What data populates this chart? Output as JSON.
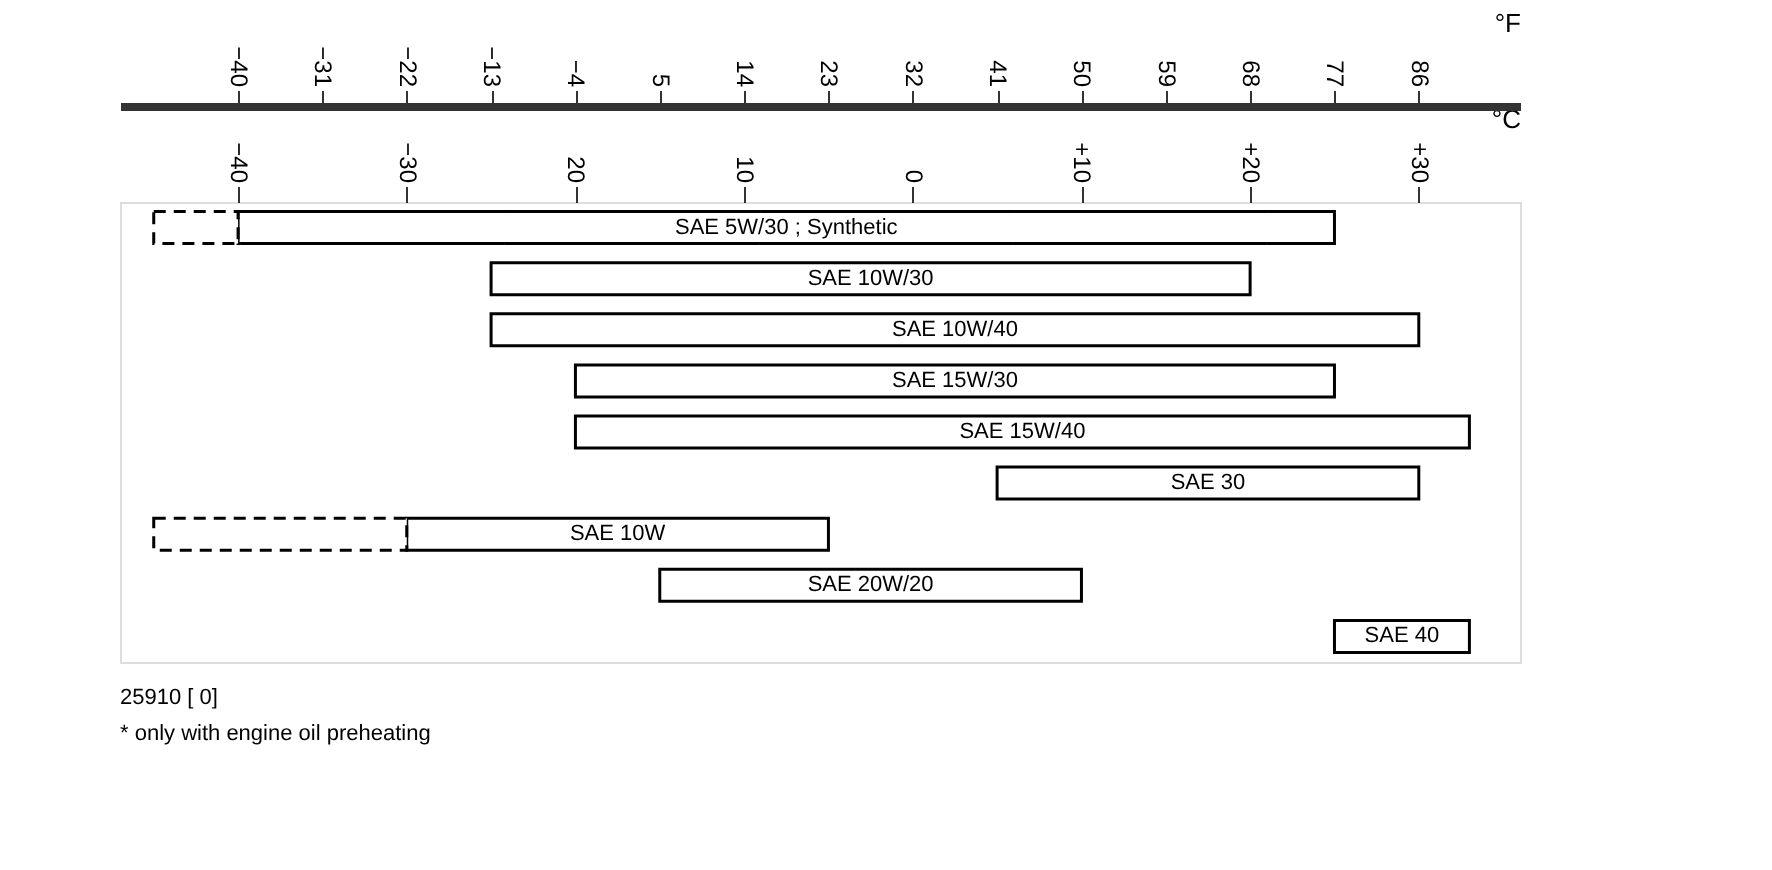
{
  "chart_data": {
    "type": "bar",
    "orientation": "horizontal",
    "categories": [
      "SAE 5W/30 ; Synthetic",
      "SAE 10W/30",
      "SAE 10W/40",
      "SAE 15W/30",
      "SAE 15W/40",
      "SAE 30",
      "SAE 10W",
      "SAE 20W/20",
      "SAE 40"
    ],
    "series": [
      {
        "color": "#000000",
        "line_style": "solid",
        "base": [
          -40,
          -25,
          -25,
          -20,
          -20,
          5,
          -30,
          -15,
          25
        ],
        "values": [
          65,
          45,
          55,
          45,
          53,
          25,
          25,
          25,
          8
        ]
      },
      {
        "color": "#000000",
        "line_style": "dashed",
        "base": [
          -45,
          null,
          null,
          null,
          null,
          null,
          -45,
          null,
          null
        ],
        "values": [
          5,
          null,
          null,
          null,
          null,
          null,
          15,
          null,
          null
        ]
      }
    ],
    "xlabel": "°C",
    "x2label": "°F",
    "xlim": [
      -47,
      36
    ],
    "xticks": [
      -40,
      -30,
      {
        "value": -20,
        "label": "20"
      },
      {
        "value": -10,
        "label": "10"
      },
      0,
      {
        "value": 10,
        "label": "+10"
      },
      {
        "value": 20,
        "label": "+20"
      },
      {
        "value": 30,
        "label": "+30"
      }
    ],
    "x2lim": [
      -52.6,
      96.8
    ],
    "x2ticks": [
      -40,
      -31,
      -22,
      -13,
      -4,
      5,
      14,
      23,
      32,
      41,
      50,
      59,
      68,
      77,
      86
    ],
    "tick_labels": "x",
    "grid": false,
    "annotations": [
      "25910 [ 0]",
      "* only with engine oil preheating"
    ]
  }
}
